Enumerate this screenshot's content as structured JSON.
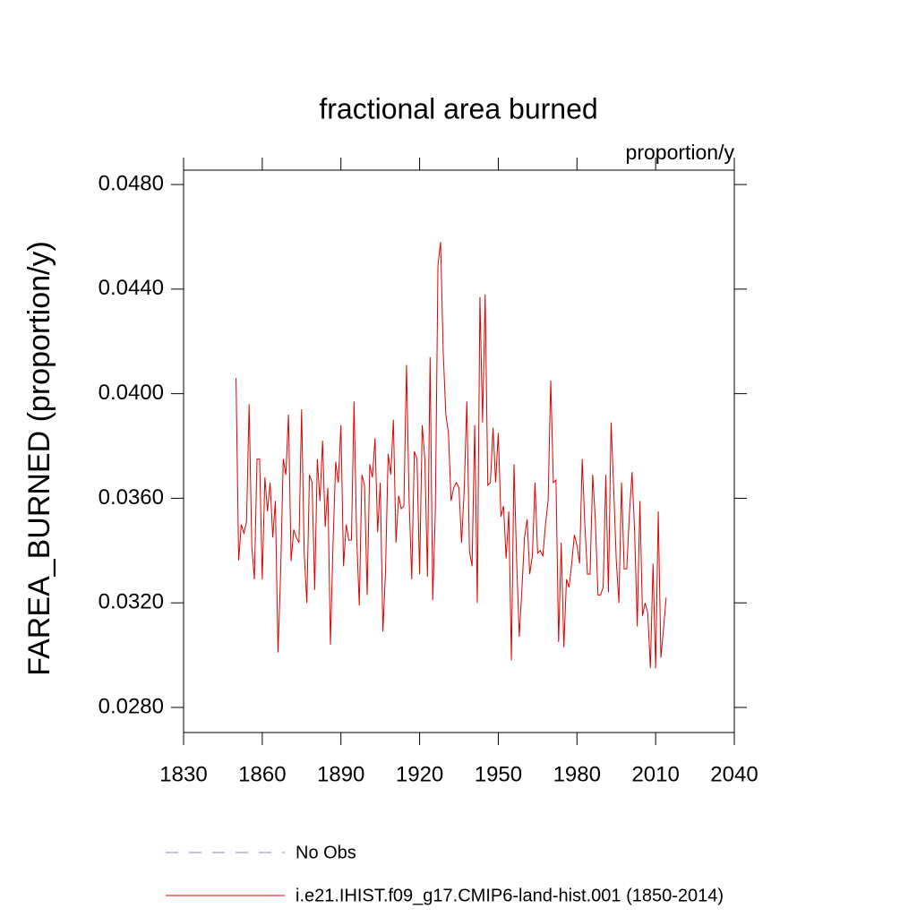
{
  "chart_data": {
    "type": "line",
    "title": "fractional area burned",
    "units_label": "proportion/y",
    "y_label": "FAREA_BURNED  (proportion/y)",
    "xlim": [
      1830,
      2040
    ],
    "xticks": [
      1830,
      1860,
      1890,
      1920,
      1950,
      1980,
      2010,
      2040
    ],
    "ylim": [
      0.02704,
      0.04855
    ],
    "yticks": [
      {
        "value": 0.028,
        "label": "0.0280"
      },
      {
        "value": 0.032,
        "label": "0.0320"
      },
      {
        "value": 0.036,
        "label": "0.0360"
      },
      {
        "value": 0.04,
        "label": "0.0400"
      },
      {
        "value": 0.044,
        "label": "0.0440"
      },
      {
        "value": 0.048,
        "label": "0.0480"
      }
    ],
    "x": [
      1850,
      1851,
      1852,
      1853,
      1854,
      1855,
      1856,
      1857,
      1858,
      1859,
      1860,
      1861,
      1862,
      1863,
      1864,
      1865,
      1866,
      1867,
      1868,
      1869,
      1870,
      1871,
      1872,
      1873,
      1874,
      1875,
      1876,
      1877,
      1878,
      1879,
      1880,
      1881,
      1882,
      1883,
      1884,
      1885,
      1886,
      1887,
      1888,
      1889,
      1890,
      1891,
      1892,
      1893,
      1894,
      1895,
      1896,
      1897,
      1898,
      1899,
      1900,
      1901,
      1902,
      1903,
      1904,
      1905,
      1906,
      1907,
      1908,
      1909,
      1910,
      1911,
      1912,
      1913,
      1914,
      1915,
      1916,
      1917,
      1918,
      1919,
      1920,
      1921,
      1922,
      1923,
      1924,
      1925,
      1926,
      1927,
      1928,
      1929,
      1930,
      1931,
      1932,
      1933,
      1934,
      1935,
      1936,
      1937,
      1938,
      1939,
      1940,
      1941,
      1942,
      1943,
      1944,
      1945,
      1946,
      1947,
      1948,
      1949,
      1950,
      1951,
      1952,
      1953,
      1954,
      1955,
      1956,
      1957,
      1958,
      1959,
      1960,
      1961,
      1962,
      1963,
      1964,
      1965,
      1966,
      1967,
      1968,
      1969,
      1970,
      1971,
      1972,
      1973,
      1974,
      1975,
      1976,
      1977,
      1978,
      1979,
      1980,
      1981,
      1982,
      1983,
      1984,
      1985,
      1986,
      1987,
      1988,
      1989,
      1990,
      1991,
      1992,
      1993,
      1994,
      1995,
      1996,
      1997,
      1998,
      1999,
      2000,
      2001,
      2002,
      2003,
      2004,
      2005,
      2006,
      2007,
      2008,
      2009,
      2010,
      2011,
      2012,
      2013,
      2014
    ],
    "series": [
      {
        "name": "i.e21.IHIST.f09_g17.CMIP6-land-hist.001 (1850-2014)",
        "color": "#e00000",
        "values": [
          0.0406,
          0.03362,
          0.035,
          0.03466,
          0.0351,
          0.0396,
          0.0342,
          0.0329,
          0.0375,
          0.0375,
          0.0329,
          0.0368,
          0.0355,
          0.0366,
          0.0345,
          0.0359,
          0.0301,
          0.0331,
          0.0375,
          0.0369,
          0.0392,
          0.0336,
          0.0348,
          0.0345,
          0.0343,
          0.0394,
          0.0339,
          0.032,
          0.0369,
          0.0366,
          0.0325,
          0.0375,
          0.0359,
          0.0382,
          0.0349,
          0.0364,
          0.0304,
          0.0343,
          0.0374,
          0.0366,
          0.0388,
          0.0334,
          0.035,
          0.0344,
          0.0344,
          0.0397,
          0.0345,
          0.0319,
          0.0369,
          0.0365,
          0.0323,
          0.0373,
          0.0368,
          0.0383,
          0.0347,
          0.0366,
          0.0309,
          0.0332,
          0.0377,
          0.0369,
          0.039,
          0.0343,
          0.0361,
          0.0356,
          0.0357,
          0.0411,
          0.0359,
          0.0329,
          0.0378,
          0.0375,
          0.0331,
          0.0388,
          0.0375,
          0.033,
          0.0414,
          0.0321,
          0.0355,
          0.0449,
          0.0458,
          0.0416,
          0.0392,
          0.0385,
          0.0359,
          0.0364,
          0.0366,
          0.0364,
          0.0343,
          0.0363,
          0.0397,
          0.034,
          0.0334,
          0.0388,
          0.032,
          0.0437,
          0.0389,
          0.0438,
          0.0365,
          0.0366,
          0.0387,
          0.0366,
          0.0385,
          0.0353,
          0.0357,
          0.0337,
          0.0355,
          0.0298,
          0.0373,
          0.0336,
          0.0307,
          0.0325,
          0.0345,
          0.0352,
          0.0331,
          0.0338,
          0.0366,
          0.0339,
          0.034,
          0.0338,
          0.035,
          0.0359,
          0.0405,
          0.0366,
          0.0367,
          0.0305,
          0.0343,
          0.0303,
          0.0329,
          0.0326,
          0.0335,
          0.0346,
          0.0342,
          0.0335,
          0.0375,
          0.035,
          0.0331,
          0.0331,
          0.0369,
          0.0352,
          0.0323,
          0.0323,
          0.0326,
          0.0369,
          0.0324,
          0.0389,
          0.0364,
          0.0336,
          0.032,
          0.0366,
          0.0333,
          0.0333,
          0.0354,
          0.037,
          0.0347,
          0.0311,
          0.0359,
          0.0315,
          0.032,
          0.0316,
          0.0295,
          0.0335,
          0.0295,
          0.0355,
          0.0299,
          0.031,
          0.0322
        ]
      }
    ],
    "obs_legend": {
      "name": "No Obs",
      "color": "#8a8ac4",
      "dash": "14 12"
    }
  }
}
